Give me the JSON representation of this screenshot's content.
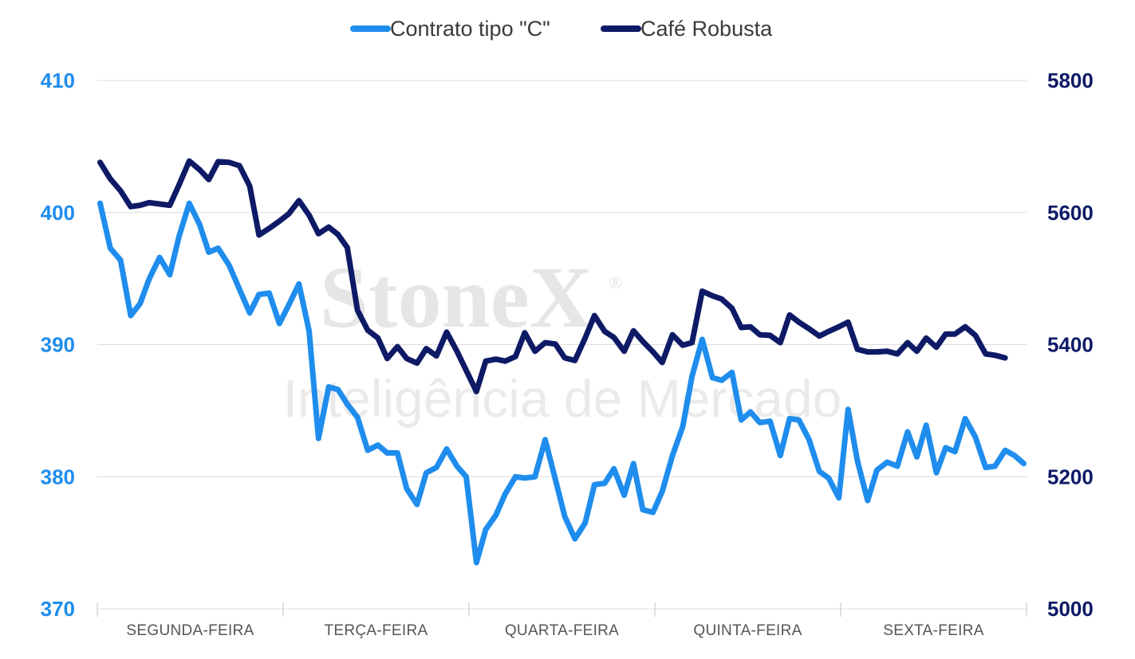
{
  "watermark": {
    "brand": "StoneX",
    "registered": "®",
    "subtitle": "Inteligência de Mercado"
  },
  "chart_data": {
    "type": "line",
    "legend_position": "top-center",
    "grid": true,
    "categories": [
      "SEGUNDA-FEIRA",
      "TERÇA-FEIRA",
      "QUARTA-FEIRA",
      "QUINTA-FEIRA",
      "SEXTA-FEIRA"
    ],
    "y_left": {
      "range": [
        370,
        410
      ],
      "ticks": [
        "370",
        "380",
        "390",
        "400",
        "410"
      ],
      "color": "#1f8ded"
    },
    "y_right": {
      "range": [
        5000,
        5800
      ],
      "ticks": [
        "5000",
        "5200",
        "5400",
        "5600",
        "5800"
      ],
      "color": "#0e1a66"
    },
    "x_range": [
      0,
      100
    ],
    "series": [
      {
        "name": "Contrato tipo \"C\"",
        "axis": "left",
        "color": "#1f8ded",
        "x": [
          0.3,
          1.4,
          2.5,
          3.6,
          4.6,
          5.6,
          6.7,
          7.8,
          8.8,
          9.9,
          11,
          12,
          13,
          14.2,
          15.3,
          16.4,
          17.4,
          18.5,
          19.6,
          20.6,
          21.7,
          22.8,
          23.8,
          24.9,
          25.9,
          26.9,
          28,
          29.1,
          30.2,
          31.2,
          32.3,
          33.3,
          34.4,
          35.4,
          36.5,
          37.6,
          38.7,
          39.7,
          40.8,
          41.8,
          42.9,
          43.9,
          45,
          46,
          47.1,
          48.2,
          49.3,
          50.3,
          51.4,
          52.5,
          53.5,
          54.6,
          55.6,
          56.7,
          57.7,
          58.7,
          59.8,
          60.8,
          61.9,
          63,
          64,
          65.1,
          66.2,
          67.2,
          68.3,
          69.3,
          70.3,
          71.3,
          72.4,
          73.5,
          74.5,
          75.5,
          76.6,
          77.7,
          78.7,
          79.8,
          80.8,
          81.8,
          82.9,
          83.9,
          85,
          86.1,
          87.2,
          88.2,
          89.2,
          90.3,
          91.3,
          92.3,
          93.4,
          94.5,
          95.6,
          96.6,
          97.7,
          98.7,
          99.7
        ],
        "values": [
          400.7,
          397.3,
          396.4,
          392.2,
          393.1,
          395,
          396.6,
          395.3,
          398.2,
          400.7,
          399.1,
          397,
          397.3,
          396,
          394.2,
          392.4,
          393.8,
          393.9,
          391.6,
          393,
          394.6,
          391,
          382.9,
          386.8,
          386.6,
          385.5,
          384.5,
          382,
          382.4,
          381.8,
          381.8,
          379.1,
          377.9,
          380.3,
          380.7,
          382.1,
          380.8,
          380,
          373.5,
          376,
          377.1,
          378.7,
          380,
          379.9,
          380,
          382.8,
          379.8,
          377,
          375.3,
          376.5,
          379.4,
          379.5,
          380.6,
          378.6,
          381,
          377.5,
          377.3,
          378.9,
          381.6,
          383.8,
          387.6,
          390.4,
          387.5,
          387.3,
          387.9,
          384.3,
          384.9,
          384.1,
          384.2,
          381.6,
          384.4,
          384.3,
          382.8,
          380.4,
          379.9,
          378.4,
          385.1,
          381.2,
          378.2,
          380.5,
          381.1,
          380.8,
          383.4,
          381.5,
          383.9,
          380.3,
          382.2,
          381.9,
          384.4,
          383,
          380.7,
          380.8,
          382,
          381.6,
          381
        ]
      },
      {
        "name": "Café Robusta",
        "axis": "right",
        "color": "#0e1a66",
        "x": [
          0.3,
          1.4,
          2.5,
          3.6,
          4.6,
          5.6,
          6.7,
          7.8,
          8.8,
          9.9,
          11,
          12,
          13,
          14.2,
          15.3,
          16.4,
          17.4,
          18.5,
          19.6,
          20.6,
          21.7,
          22.8,
          23.8,
          24.9,
          25.9,
          26.9,
          28,
          29.1,
          30.2,
          31.2,
          32.3,
          33.3,
          34.4,
          35.4,
          36.5,
          37.6,
          38.7,
          39.7,
          40.8,
          41.8,
          42.9,
          43.9,
          45,
          46,
          47.1,
          48.2,
          49.3,
          50.3,
          51.4,
          52.5,
          53.5,
          54.6,
          55.6,
          56.7,
          57.7,
          58.7,
          59.8,
          60.8,
          61.9,
          63,
          64,
          65.1,
          66.2,
          67.2,
          68.3,
          69.3,
          70.3,
          71.3,
          72.4,
          73.5,
          74.5,
          75.5,
          76.6,
          77.7,
          78.7,
          79.8,
          80.8,
          81.8,
          82.9,
          83.9,
          85,
          86.1,
          87.2,
          88.2,
          89.2,
          90.3,
          91.3,
          92.3,
          93.4,
          94.5,
          95.6,
          96.6,
          97.7
        ],
        "values": [
          5676,
          5651,
          5633,
          5609,
          5611,
          5615,
          5613,
          5611,
          5642,
          5678,
          5665,
          5650,
          5677,
          5676,
          5671,
          5640,
          5566,
          5576,
          5587,
          5598,
          5618,
          5596,
          5568,
          5578,
          5567,
          5547,
          5452,
          5422,
          5410,
          5379,
          5397,
          5379,
          5372,
          5394,
          5383,
          5419,
          5390,
          5361,
          5329,
          5375,
          5378,
          5375,
          5382,
          5418,
          5390,
          5403,
          5401,
          5380,
          5376,
          5410,
          5444,
          5420,
          5411,
          5390,
          5421,
          5405,
          5389,
          5373,
          5415,
          5399,
          5403,
          5481,
          5474,
          5469,
          5455,
          5426,
          5427,
          5415,
          5414,
          5403,
          5445,
          5434,
          5424,
          5413,
          5420,
          5427,
          5434,
          5393,
          5389,
          5389,
          5390,
          5386,
          5403,
          5390,
          5410,
          5396,
          5416,
          5416,
          5427,
          5414,
          5386,
          5384,
          5380
        ]
      }
    ]
  }
}
